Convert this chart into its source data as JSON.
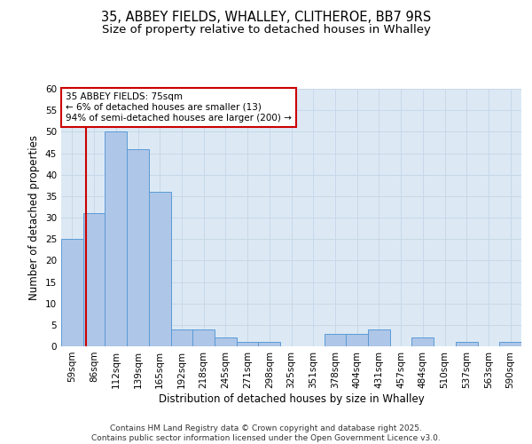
{
  "title_line1": "35, ABBEY FIELDS, WHALLEY, CLITHEROE, BB7 9RS",
  "title_line2": "Size of property relative to detached houses in Whalley",
  "xlabel": "Distribution of detached houses by size in Whalley",
  "ylabel": "Number of detached properties",
  "categories": [
    "59sqm",
    "86sqm",
    "112sqm",
    "139sqm",
    "165sqm",
    "192sqm",
    "218sqm",
    "245sqm",
    "271sqm",
    "298sqm",
    "325sqm",
    "351sqm",
    "378sqm",
    "404sqm",
    "431sqm",
    "457sqm",
    "484sqm",
    "510sqm",
    "537sqm",
    "563sqm",
    "590sqm"
  ],
  "values": [
    25,
    31,
    50,
    46,
    36,
    4,
    4,
    2,
    1,
    1,
    0,
    0,
    3,
    3,
    4,
    0,
    2,
    0,
    1,
    0,
    1
  ],
  "bar_color": "#aec6e8",
  "bar_edge_color": "#5b9bd5",
  "grid_color": "#c8d8e8",
  "background_color": "#dce9f5",
  "annotation_box_color": "#ffffff",
  "annotation_border_color": "#cc0000",
  "red_line_color": "#cc0000",
  "annotation_text_line1": "35 ABBEY FIELDS: 75sqm",
  "annotation_text_line2": "← 6% of detached houses are smaller (13)",
  "annotation_text_line3": "94% of semi-detached houses are larger (200) →",
  "red_line_x": 0.62,
  "ylim": [
    0,
    60
  ],
  "yticks": [
    0,
    5,
    10,
    15,
    20,
    25,
    30,
    35,
    40,
    45,
    50,
    55,
    60
  ],
  "footer_text": "Contains HM Land Registry data © Crown copyright and database right 2025.\nContains public sector information licensed under the Open Government Licence v3.0.",
  "title_fontsize": 10.5,
  "subtitle_fontsize": 9.5,
  "axis_label_fontsize": 8.5,
  "tick_fontsize": 7.5,
  "annotation_fontsize": 7.5,
  "footer_fontsize": 6.5
}
